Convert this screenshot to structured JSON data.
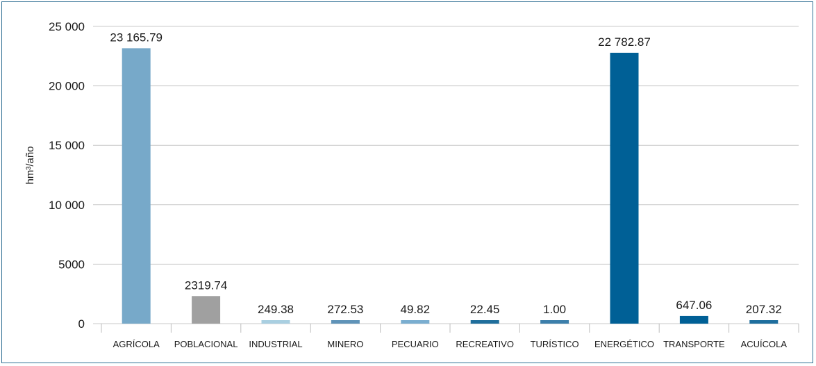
{
  "chart_data": {
    "type": "bar",
    "ylabel": "hm³/año",
    "ylim": [
      0,
      25000
    ],
    "yticks": [
      {
        "value": 0,
        "label": "0"
      },
      {
        "value": 5000,
        "label": "5000"
      },
      {
        "value": 10000,
        "label": "10 000"
      },
      {
        "value": 15000,
        "label": "15 000"
      },
      {
        "value": 20000,
        "label": "20 000"
      },
      {
        "value": 25000,
        "label": "25 000"
      }
    ],
    "grid": true,
    "categories": [
      "AGRÍCOLA",
      "POBLACIONAL",
      "INDUSTRIAL",
      "MINERO",
      "PECUARIO",
      "RECREATIVO",
      "TURÍSTICO",
      "ENERGÉTICO",
      "TRANSPORTE",
      "ACUÍCOLA"
    ],
    "values": [
      23165.79,
      2319.74,
      249.38,
      272.53,
      49.82,
      22.45,
      1.0,
      22782.87,
      647.06,
      207.32
    ],
    "value_labels": [
      "23 165.79",
      "2319.74",
      "249.38",
      "272.53",
      "49.82",
      "22.45",
      "1.00",
      "22 782.87",
      "647.06",
      "207.32"
    ],
    "colors": [
      "#77a9c9",
      "#a0a0a0",
      "#a9cfe1",
      "#5f93b8",
      "#7aaed0",
      "#1f6e9c",
      "#3c7fab",
      "#006096",
      "#006096",
      "#1e6e9e"
    ]
  }
}
